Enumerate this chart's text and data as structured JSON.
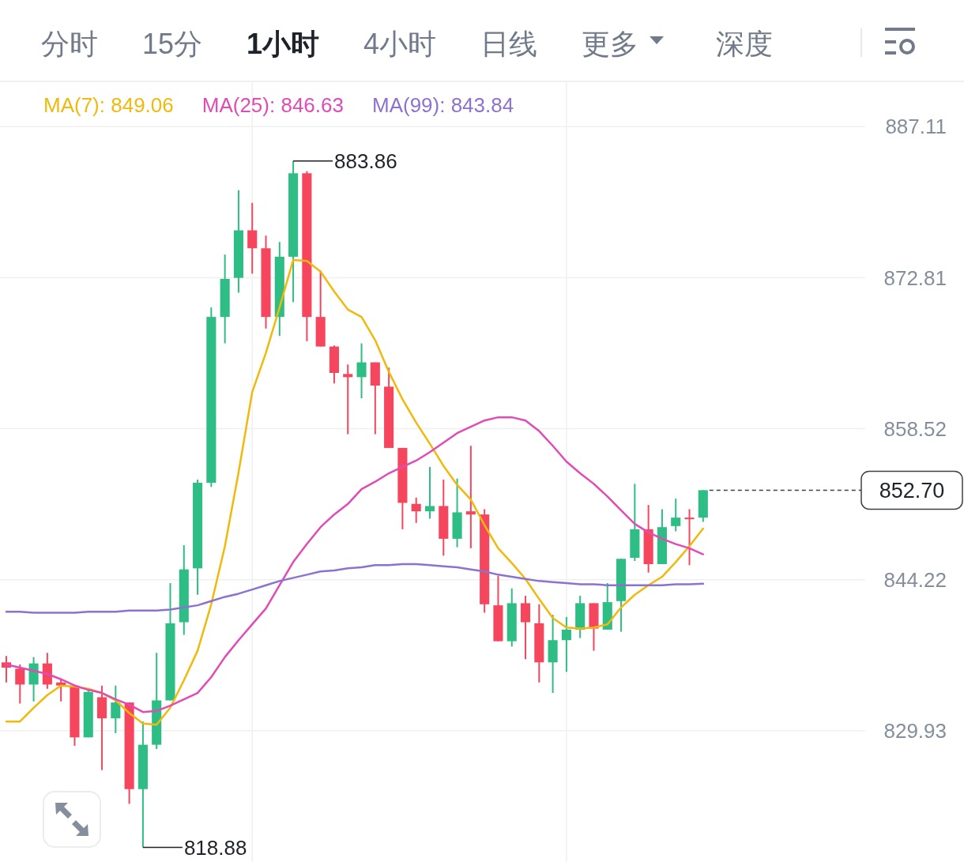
{
  "chart_data": {
    "type": "candlestick",
    "categories": [
      null,
      null,
      null,
      null,
      null,
      null,
      null,
      null,
      null,
      null,
      null,
      null,
      null,
      null,
      null,
      null,
      null,
      null,
      null,
      null,
      null,
      null,
      null,
      null,
      null,
      null,
      null,
      null,
      null,
      null,
      null,
      null,
      null,
      null,
      null,
      null,
      null,
      null,
      null,
      null,
      null,
      null,
      null,
      null,
      null,
      null,
      null,
      null,
      null,
      null,
      null,
      null
    ],
    "ohlc": [
      [
        836.4,
        837.0,
        834.5,
        835.9
      ],
      [
        835.8,
        836.2,
        832.5,
        834.3
      ],
      [
        834.3,
        836.9,
        832.7,
        836.3
      ],
      [
        836.3,
        837.3,
        833.9,
        834.3
      ],
      [
        834.5,
        834.8,
        832.7,
        834.2
      ],
      [
        834.2,
        834.3,
        828.5,
        829.3
      ],
      [
        829.3,
        833.8,
        829.3,
        833.6
      ],
      [
        833.1,
        834.2,
        826.2,
        831.1
      ],
      [
        831.1,
        834.2,
        829.7,
        832.6
      ],
      [
        832.6,
        832.6,
        823.0,
        824.4
      ],
      [
        824.4,
        830.8,
        818.88,
        828.6
      ],
      [
        828.6,
        837.3,
        828.2,
        832.8
      ],
      [
        832.8,
        843.9,
        832.8,
        840.1
      ],
      [
        840.2,
        847.5,
        839.0,
        845.2
      ],
      [
        845.3,
        853.7,
        842.8,
        853.4
      ],
      [
        853.4,
        870.0,
        853.0,
        869.1
      ],
      [
        869.1,
        875.0,
        866.6,
        872.7
      ],
      [
        872.8,
        881.1,
        871.4,
        877.3
      ],
      [
        877.3,
        879.9,
        873.2,
        875.6
      ],
      [
        875.6,
        876.8,
        868.0,
        869.1
      ],
      [
        869.1,
        876.2,
        867.3,
        874.8
      ],
      [
        874.8,
        883.86,
        870.5,
        882.7
      ],
      [
        882.7,
        882.9,
        866.8,
        869.1
      ],
      [
        869.1,
        873.5,
        866.3,
        866.3
      ],
      [
        866.3,
        866.4,
        862.8,
        863.8
      ],
      [
        863.7,
        864.6,
        858.0,
        863.4
      ],
      [
        863.4,
        866.6,
        861.4,
        864.8
      ],
      [
        864.8,
        864.8,
        858.0,
        862.6
      ],
      [
        862.5,
        864.3,
        856.7,
        856.7
      ],
      [
        856.7,
        856.7,
        849.0,
        851.5
      ],
      [
        851.4,
        852.0,
        849.6,
        850.7
      ],
      [
        850.7,
        854.9,
        850.0,
        851.2
      ],
      [
        851.2,
        853.7,
        846.5,
        848.1
      ],
      [
        848.1,
        853.8,
        847.3,
        850.6
      ],
      [
        850.7,
        856.9,
        847.2,
        850.4
      ],
      [
        850.4,
        850.9,
        841.1,
        841.9
      ],
      [
        841.8,
        844.6,
        838.4,
        838.4
      ],
      [
        838.4,
        843.4,
        837.9,
        842.0
      ],
      [
        842.0,
        842.7,
        836.7,
        840.2
      ],
      [
        840.1,
        841.9,
        834.5,
        836.4
      ],
      [
        836.4,
        840.9,
        833.5,
        838.5
      ],
      [
        838.5,
        840.7,
        835.5,
        839.5
      ],
      [
        839.5,
        842.7,
        838.7,
        842.0
      ],
      [
        842.0,
        842.0,
        837.5,
        839.6
      ],
      [
        839.5,
        843.9,
        839.5,
        842.1
      ],
      [
        842.2,
        846.2,
        839.3,
        846.2
      ],
      [
        846.3,
        853.3,
        846.0,
        849.0
      ],
      [
        849.0,
        851.3,
        844.9,
        845.7
      ],
      [
        845.7,
        850.9,
        845.7,
        849.2
      ],
      [
        849.3,
        851.9,
        848.8,
        850.1
      ],
      [
        850.1,
        850.9,
        845.6,
        850.0
      ],
      [
        850.1,
        852.7,
        849.7,
        852.7
      ]
    ],
    "colors": [
      "#f6465d",
      "#f6465d",
      "#2ebd85",
      "#f6465d",
      "#f6465d",
      "#f6465d",
      "#2ebd85",
      "#f6465d",
      "#2ebd85",
      "#f6465d",
      "#2ebd85",
      "#2ebd85",
      "#2ebd85",
      "#2ebd85",
      "#2ebd85",
      "#2ebd85",
      "#2ebd85",
      "#2ebd85",
      "#f6465d",
      "#f6465d",
      "#2ebd85",
      "#2ebd85",
      "#f6465d",
      "#f6465d",
      "#f6465d",
      "#f6465d",
      "#2ebd85",
      "#f6465d",
      "#f6465d",
      "#f6465d",
      "#f6465d",
      "#2ebd85",
      "#f6465d",
      "#2ebd85",
      "#f6465d",
      "#f6465d",
      "#f6465d",
      "#2ebd85",
      "#f6465d",
      "#f6465d",
      "#2ebd85",
      "#2ebd85",
      "#2ebd85",
      "#f6465d",
      "#2ebd85",
      "#2ebd85",
      "#2ebd85",
      "#f6465d",
      "#2ebd85",
      "#2ebd85",
      "#f6465d",
      "#2ebd85"
    ],
    "series": [
      {
        "name": "MA(7): 849.06",
        "type": "line",
        "color": "#f0b90b",
        "values": [
          830.8,
          830.8,
          832.1,
          833.3,
          834.2,
          834.1,
          833.9,
          833.5,
          832.8,
          831.6,
          830.6,
          830.5,
          832.1,
          834.7,
          837.5,
          841.9,
          847.4,
          854.4,
          862.0,
          865.7,
          870.0,
          874.5,
          874.4,
          873.4,
          871.5,
          869.8,
          869.1,
          866.9,
          863.9,
          861.3,
          859.1,
          857.1,
          855.0,
          853.2,
          851.8,
          849.4,
          847.2,
          845.8,
          844.3,
          842.4,
          840.6,
          839.7,
          839.6,
          839.7,
          840.0,
          841.6,
          842.8,
          843.7,
          844.5,
          845.9,
          847.4,
          849.06
        ]
      },
      {
        "name": "MA(25): 846.63",
        "type": "line",
        "color": "#e14bb5",
        "values": [
          836.2,
          835.9,
          835.6,
          835.3,
          834.8,
          834.2,
          833.8,
          833.5,
          832.9,
          832.4,
          831.7,
          831.8,
          832.3,
          832.9,
          833.5,
          835.0,
          836.9,
          838.5,
          840.0,
          841.5,
          843.7,
          845.9,
          847.6,
          849.2,
          850.4,
          851.4,
          852.8,
          853.5,
          854.3,
          854.9,
          855.5,
          856.3,
          857.2,
          858.1,
          858.7,
          859.3,
          859.6,
          859.6,
          859.3,
          858.3,
          856.9,
          855.4,
          854.3,
          853.3,
          852.1,
          850.8,
          849.5,
          848.7,
          848.1,
          847.6,
          847.2,
          846.63
        ]
      },
      {
        "name": "MA(99): 843.84",
        "type": "line",
        "color": "#8c72d0",
        "values": [
          841.2,
          841.2,
          841.1,
          841.1,
          841.1,
          841.1,
          841.2,
          841.2,
          841.2,
          841.3,
          841.3,
          841.3,
          841.4,
          841.6,
          841.8,
          842.2,
          842.6,
          842.9,
          843.3,
          843.7,
          844.1,
          844.4,
          844.7,
          845.0,
          845.1,
          845.3,
          845.4,
          845.6,
          845.6,
          845.7,
          845.7,
          845.6,
          845.5,
          845.4,
          845.2,
          845.0,
          844.7,
          844.5,
          844.3,
          844.1,
          844.0,
          843.9,
          843.8,
          843.8,
          843.7,
          843.7,
          843.7,
          843.7,
          843.7,
          843.8,
          843.8,
          843.84
        ]
      }
    ],
    "ylim": [
      817.5,
      891.4
    ],
    "yticks": [
      887.11,
      872.81,
      858.52,
      844.22,
      829.93
    ],
    "tick_labels": "y",
    "grid": true,
    "ref_lines": [
      {
        "axis": "y",
        "value": 852.7,
        "label": "852.70",
        "line_style": "dashed",
        "color": "#3c4048"
      }
    ],
    "annotations": [
      "分时",
      "15分",
      "1小时",
      "4小时",
      "日线",
      "更多",
      "深度",
      "883.86",
      "818.88"
    ]
  }
}
